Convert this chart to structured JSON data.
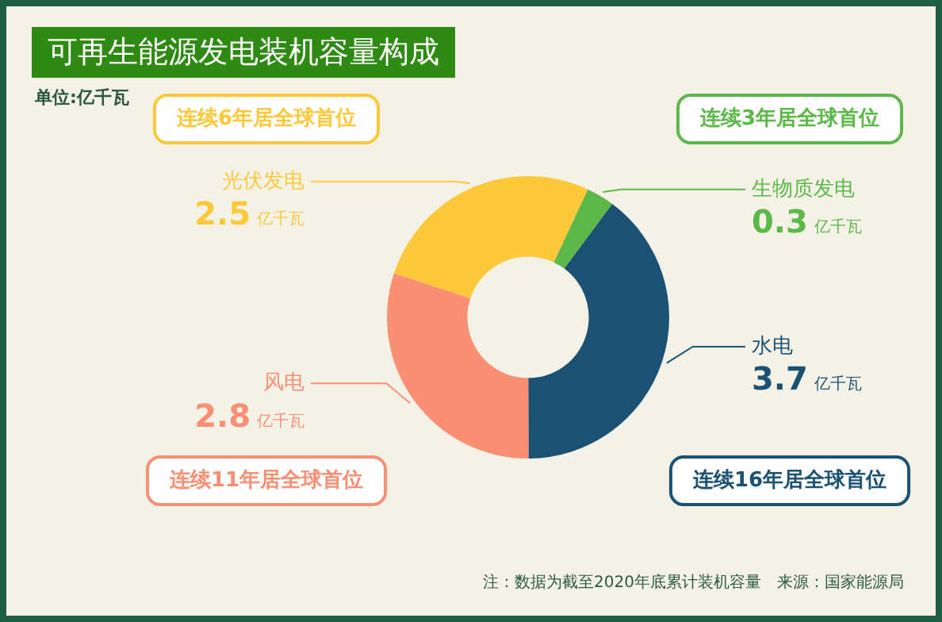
{
  "chart_data": {
    "type": "donut",
    "title": "可再生能源发电装机容量构成",
    "subtitle": "单位:亿千瓦",
    "categories": [
      "生物质发电",
      "水电",
      "风电",
      "光伏发电"
    ],
    "values": [
      0.3,
      3.7,
      2.8,
      2.5
    ],
    "colors": [
      "#5cb848",
      "#1b5273",
      "#f98f74",
      "#fdc93a"
    ],
    "value_labels": [
      "0.3 亿千瓦",
      "3.7 亿千瓦",
      "2.8 亿千瓦",
      "2.5 亿千瓦"
    ],
    "legend": false,
    "annotations": [
      {
        "text": "连续3年居全球首位",
        "x": "生物质发电"
      },
      {
        "text": "连续16年居全球首位",
        "x": "水电"
      },
      {
        "text": "连续11年居全球首位",
        "x": "风电"
      },
      {
        "text": "连续6年居全球首位",
        "x": "光伏发电"
      },
      "注：数据为截至2020年底累计装机容量　来源：国家能源局"
    ]
  }
}
